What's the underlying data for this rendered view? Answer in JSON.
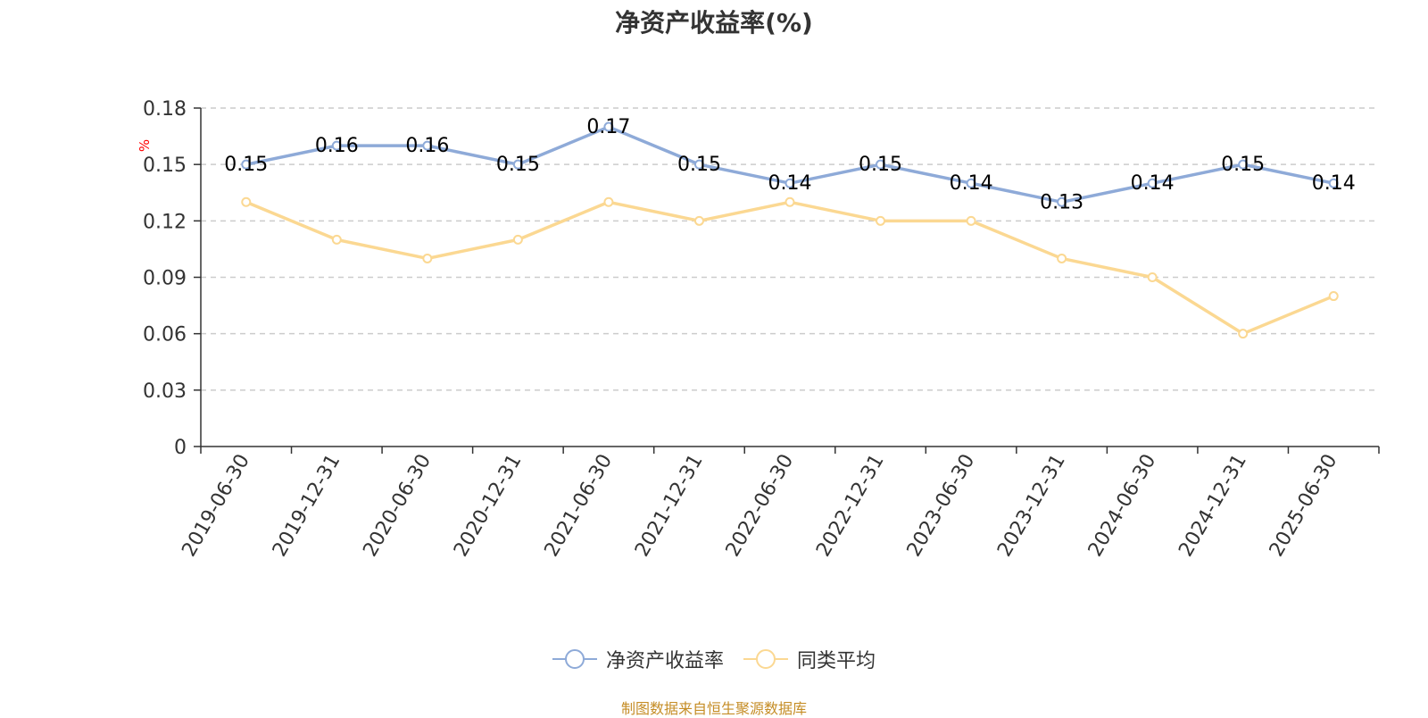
{
  "chart_data": {
    "type": "line",
    "title": "净资产收益率(%)",
    "ylabel": "%",
    "xlabel": "",
    "categories": [
      "2019-06-30",
      "2019-12-31",
      "2020-06-30",
      "2020-12-31",
      "2021-06-30",
      "2021-12-31",
      "2022-06-30",
      "2022-12-31",
      "2023-06-30",
      "2023-12-31",
      "2024-06-30",
      "2024-12-31",
      "2025-06-30"
    ],
    "ylim": [
      0,
      0.18
    ],
    "yticks": [
      "0",
      "0.03",
      "0.06",
      "0.09",
      "0.12",
      "0.15",
      "0.18"
    ],
    "grid": true,
    "legend_position": "bottom",
    "series": [
      {
        "name": "净资产收益率",
        "color": "#8eaad8",
        "show_labels": true,
        "values": [
          0.15,
          0.16,
          0.16,
          0.15,
          0.17,
          0.15,
          0.14,
          0.15,
          0.14,
          0.13,
          0.14,
          0.15,
          0.14
        ]
      },
      {
        "name": "同类平均",
        "color": "#fbd892",
        "show_labels": false,
        "values": [
          0.13,
          0.11,
          0.1,
          0.11,
          0.13,
          0.12,
          0.13,
          0.12,
          0.12,
          0.1,
          0.09,
          0.06,
          0.08
        ]
      }
    ]
  },
  "footer": {
    "source": "制图数据来自恒生聚源数据库"
  }
}
